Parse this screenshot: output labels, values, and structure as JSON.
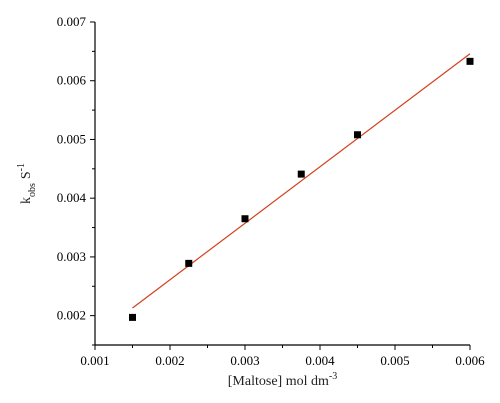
{
  "chart_data": {
    "type": "scatter",
    "xlabel": "[Maltose] mol dm",
    "xlabel_sup": "-3",
    "ylabel_main": "k",
    "ylabel_sub": "obs",
    "ylabel_unit": "S",
    "ylabel_sup": "-1",
    "xlim": [
      0.001,
      0.006
    ],
    "ylim": [
      0.0015,
      0.007
    ],
    "xticks": [
      {
        "value": 0.001,
        "label": "0.001"
      },
      {
        "value": 0.002,
        "label": "0.002"
      },
      {
        "value": 0.003,
        "label": "0.003"
      },
      {
        "value": 0.004,
        "label": "0.004"
      },
      {
        "value": 0.005,
        "label": "0.005"
      },
      {
        "value": 0.006,
        "label": "0.006"
      }
    ],
    "yticks": [
      {
        "value": 0.002,
        "label": "0.002"
      },
      {
        "value": 0.003,
        "label": "0.003"
      },
      {
        "value": 0.004,
        "label": "0.004"
      },
      {
        "value": 0.005,
        "label": "0.005"
      },
      {
        "value": 0.006,
        "label": "0.006"
      },
      {
        "value": 0.007,
        "label": "0.007"
      }
    ],
    "series": [
      {
        "type": "scatter",
        "marker": "square",
        "color": "#000000",
        "x": [
          0.0015,
          0.00225,
          0.003,
          0.00375,
          0.0045,
          0.006
        ],
        "y": [
          0.00197,
          0.00289,
          0.00365,
          0.00441,
          0.00508,
          0.00633
        ]
      },
      {
        "type": "line",
        "color": "#d2401c",
        "x": [
          0.0015,
          0.006
        ],
        "y": [
          0.00213,
          0.00646
        ]
      }
    ],
    "grid": false,
    "legend": "none"
  }
}
